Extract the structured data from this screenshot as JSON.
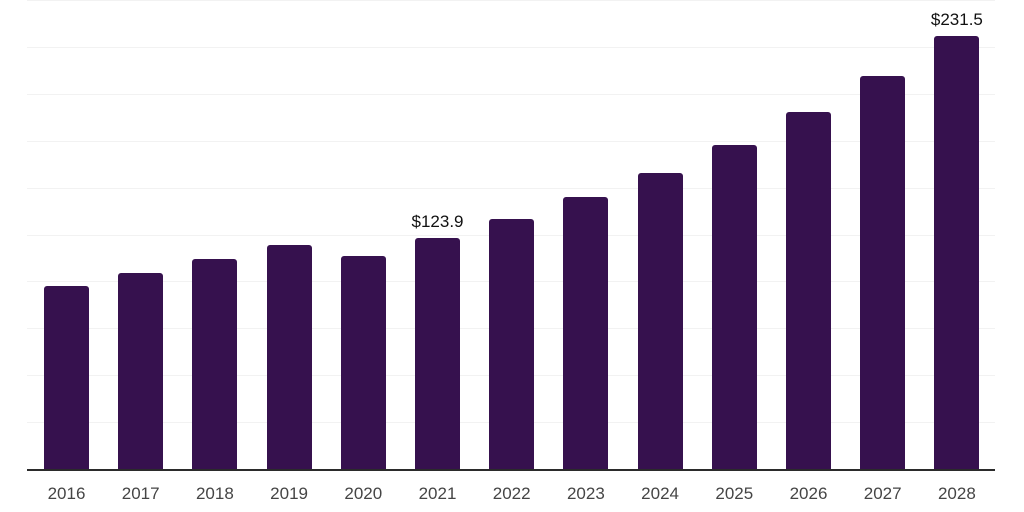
{
  "chart_data": {
    "type": "bar",
    "title": "",
    "xlabel": "",
    "ylabel": "",
    "categories": [
      "2016",
      "2017",
      "2018",
      "2019",
      "2020",
      "2021",
      "2022",
      "2023",
      "2024",
      "2025",
      "2026",
      "2027",
      "2028"
    ],
    "values": [
      98.1,
      104.9,
      112.4,
      120.2,
      114.0,
      123.9,
      134.0,
      145.7,
      158.4,
      173.2,
      190.6,
      209.9,
      231.5
    ],
    "data_labels": {
      "2021": "$123.9",
      "2028": "$231.5"
    },
    "ylim": [
      0,
      250
    ],
    "gridline_step": 25,
    "grid": true,
    "legend": false,
    "colors": {
      "bar": "#36114E",
      "gridline": "#f2f2f2",
      "axis_line": "#2b2b2b",
      "tick_label": "#454545",
      "data_label": "#111111"
    }
  }
}
